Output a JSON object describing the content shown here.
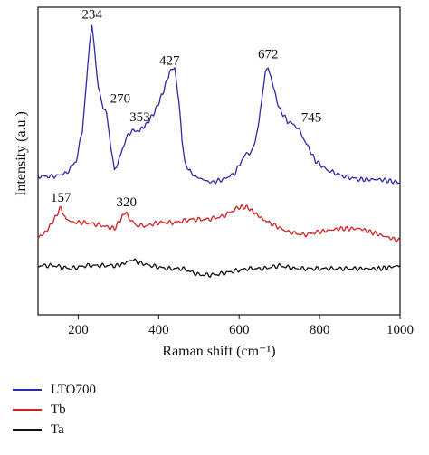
{
  "chart_data": {
    "type": "line",
    "title": "",
    "xlabel": "Raman shift (cm⁻¹)",
    "ylabel": "Intensity (a.u.)",
    "xlim": [
      100,
      1000
    ],
    "ylim": [
      0,
      100
    ],
    "xticks": [
      200,
      400,
      600,
      800,
      1000
    ],
    "yticks_shown": false,
    "legend_position": "below",
    "series": [
      {
        "name": "LTO700",
        "color": "#2b2ba8",
        "x": [
          100,
          140,
          170,
          195,
          210,
          220,
          228,
          234,
          240,
          250,
          262,
          270,
          280,
          290,
          298,
          310,
          325,
          340,
          353,
          370,
          390,
          410,
          427,
          440,
          450,
          458,
          465,
          475,
          490,
          510,
          530,
          560,
          590,
          605,
          615,
          625,
          640,
          655,
          665,
          672,
          685,
          700,
          720,
          745,
          770,
          790,
          820,
          860,
          900,
          950,
          1000
        ],
        "y": [
          45,
          45,
          46,
          50,
          60,
          75,
          88,
          94,
          87,
          74,
          67,
          66,
          56,
          47,
          49,
          54,
          59,
          60,
          60,
          62,
          66,
          72,
          79,
          80,
          70,
          57,
          50,
          47,
          45,
          44,
          43,
          44,
          46,
          50,
          52,
          52,
          56,
          68,
          79,
          81,
          74,
          67,
          63,
          61,
          55,
          50,
          47,
          45,
          44,
          44,
          43
        ]
      },
      {
        "name": "Tb",
        "color": "#d21f1f",
        "x": [
          100,
          120,
          140,
          157,
          170,
          190,
          220,
          260,
          290,
          310,
          320,
          330,
          345,
          370,
          400,
          440,
          480,
          520,
          560,
          600,
          620,
          640,
          660,
          690,
          720,
          760,
          800,
          850,
          900,
          950,
          1000
        ],
        "y": [
          25,
          27,
          31,
          35,
          31,
          30,
          30,
          29,
          28,
          32,
          33,
          31,
          29,
          29,
          30,
          30,
          31,
          31,
          32,
          35,
          35,
          33,
          31,
          29,
          27,
          26,
          27,
          28,
          28,
          26,
          24
        ]
      },
      {
        "name": "Ta",
        "color": "#111111",
        "x": [
          100,
          140,
          180,
          220,
          260,
          300,
          320,
          335,
          350,
          380,
          420,
          460,
          500,
          540,
          580,
          620,
          660,
          700,
          740,
          780,
          820,
          860,
          900,
          950,
          1000
        ],
        "y": [
          16,
          16,
          15,
          16,
          16,
          16,
          17,
          18,
          17,
          16,
          15,
          15,
          13,
          13,
          14,
          15,
          15,
          16,
          15,
          15,
          15,
          15,
          15,
          15,
          16
        ]
      }
    ],
    "annotations": [
      {
        "text": "234",
        "x": 234,
        "series": "LTO700"
      },
      {
        "text": "270",
        "x": 270,
        "series": "LTO700"
      },
      {
        "text": "353",
        "x": 353,
        "series": "LTO700"
      },
      {
        "text": "427",
        "x": 427,
        "series": "LTO700"
      },
      {
        "text": "672",
        "x": 672,
        "series": "LTO700"
      },
      {
        "text": "745",
        "x": 745,
        "series": "LTO700"
      },
      {
        "text": "157",
        "x": 157,
        "series": "Tb"
      },
      {
        "text": "320",
        "x": 320,
        "series": "Tb"
      }
    ]
  }
}
